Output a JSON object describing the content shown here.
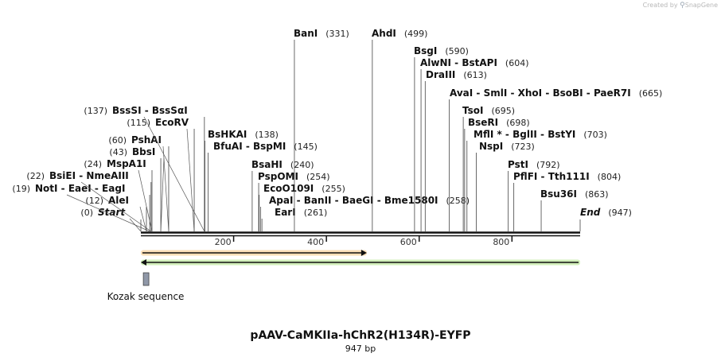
{
  "credit": {
    "prefix": "Created by",
    "brand": "SnapGene"
  },
  "map": {
    "name": "pAAV-CaMKIIa-hChR2(H134R)-EYFP",
    "length_label": "947 bp",
    "length": 947,
    "ticks": [
      200,
      400,
      600,
      800
    ],
    "sites": [
      {
        "pos": 0,
        "label": "Start",
        "num": "(0)",
        "italic": true
      },
      {
        "pos": 12,
        "label": "AleI",
        "num": "(12)"
      },
      {
        "pos": 19,
        "label": "NotI  -  EaeI  -  EagI",
        "num": "(19)"
      },
      {
        "pos": 22,
        "label": "BsiEI  -  NmeAIII",
        "num": "(22)"
      },
      {
        "pos": 24,
        "label": "MspA1I",
        "num": "(24)"
      },
      {
        "pos": 43,
        "label": "BbsI",
        "num": "(43)"
      },
      {
        "pos": 60,
        "label": "PshAI",
        "num": "(60)"
      },
      {
        "pos": 115,
        "label": "EcoRV",
        "num": "(115)"
      },
      {
        "pos": 137,
        "label": "BssSI  -  BssSαI",
        "num": "(137)"
      },
      {
        "pos": 138,
        "label": "BsHKAI",
        "num": "(138)"
      },
      {
        "pos": 145,
        "label": "BfuAI  -  BspMI",
        "num": "(145)"
      },
      {
        "pos": 240,
        "label": "BsaHI",
        "num": "(240)"
      },
      {
        "pos": 254,
        "label": "PspOMI",
        "num": "(254)"
      },
      {
        "pos": 255,
        "label": "EcoO109I",
        "num": "(255)"
      },
      {
        "pos": 258,
        "label": "ApaI  -  BanII  -  BaeGI  -  Bme1580I",
        "num": "(258)"
      },
      {
        "pos": 261,
        "label": "EarI",
        "num": "(261)"
      },
      {
        "pos": 331,
        "label": "BanI",
        "num": "(331)"
      },
      {
        "pos": 499,
        "label": "AhdI",
        "num": "(499)"
      },
      {
        "pos": 590,
        "label": "BsgI",
        "num": "(590)"
      },
      {
        "pos": 604,
        "label": "AlwNI  -  BstAPI",
        "num": "(604)"
      },
      {
        "pos": 613,
        "label": "DraIII",
        "num": "(613)"
      },
      {
        "pos": 665,
        "label": "AvaI  -  SmlI  -  XhoI  -  BsoBI  -  PaeR7I",
        "num": "(665)"
      },
      {
        "pos": 695,
        "label": "TsoI",
        "num": "(695)"
      },
      {
        "pos": 698,
        "label": "BseRI",
        "num": "(698)"
      },
      {
        "pos": 703,
        "label": "MflI *  -  BglII  -  BstYI",
        "num": "(703)"
      },
      {
        "pos": 723,
        "label": "NspI",
        "num": "(723)"
      },
      {
        "pos": 792,
        "label": "PstI",
        "num": "(792)"
      },
      {
        "pos": 804,
        "label": "PflFI  -  Tth111I",
        "num": "(804)"
      },
      {
        "pos": 863,
        "label": "Bsu36I",
        "num": "(863)"
      },
      {
        "pos": 947,
        "label": "End",
        "num": "(947)",
        "italic": true
      }
    ],
    "features": [
      {
        "name": "orange-arrow",
        "start": 0,
        "end": 487,
        "direction": "forward",
        "color": "#f0a030"
      },
      {
        "name": "green-arrow",
        "start": 0,
        "end": 947,
        "direction": "reverse",
        "color": "#7fd03a"
      }
    ],
    "kozak": {
      "label": "Kozak sequence",
      "start": 7,
      "end": 17,
      "color": "#9098a8"
    }
  }
}
